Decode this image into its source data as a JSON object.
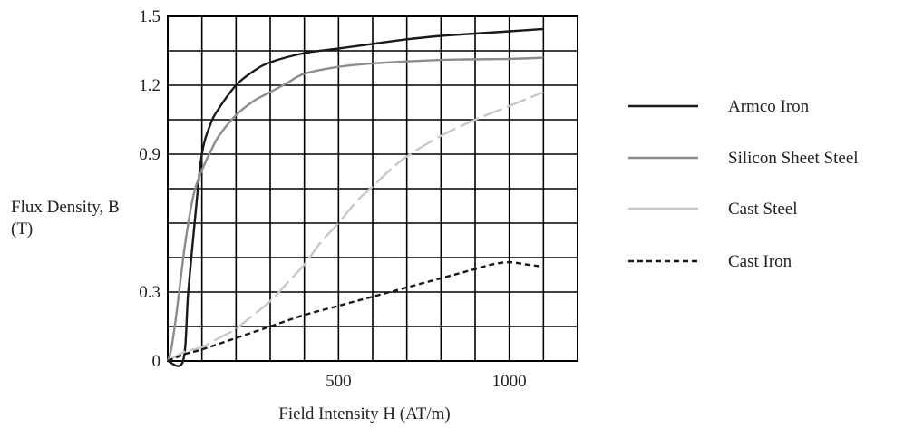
{
  "chart_data": {
    "type": "line",
    "title": "",
    "xlabel": "Field Intensity H (AT/m)",
    "ylabel_line1": "Flux Density, B",
    "ylabel_line2": "(T)",
    "xlim": [
      0,
      1200
    ],
    "ylim": [
      0,
      1.5
    ],
    "grid": true,
    "x_ticks": [
      {
        "value": 500,
        "label": "500"
      },
      {
        "value": 1000,
        "label": "1000"
      }
    ],
    "y_ticks": [
      {
        "value": 0,
        "label": "0"
      },
      {
        "value": 0.3,
        "label": "0.3"
      },
      {
        "value": 0.9,
        "label": "0.9"
      },
      {
        "value": 1.2,
        "label": "1.2"
      },
      {
        "value": 1.5,
        "label": "1.5"
      }
    ],
    "legend_position": "right",
    "series": [
      {
        "name": "Armco Iron",
        "color": "#1a1a1a",
        "dash": "",
        "x": [
          0,
          45,
          60,
          80,
          100,
          125,
          150,
          200,
          250,
          300,
          400,
          500,
          600,
          700,
          800,
          900,
          1000,
          1100
        ],
        "y": [
          0,
          0,
          0.3,
          0.62,
          0.9,
          1.03,
          1.1,
          1.2,
          1.26,
          1.3,
          1.34,
          1.36,
          1.38,
          1.4,
          1.415,
          1.425,
          1.435,
          1.445
        ]
      },
      {
        "name": "Silicon Sheet Steel",
        "color": "#8c8c8c",
        "dash": "",
        "x": [
          0,
          10,
          25,
          50,
          75,
          100,
          125,
          150,
          200,
          250,
          300,
          350,
          400,
          500,
          600,
          800,
          1000,
          1100
        ],
        "y": [
          0,
          0.05,
          0.2,
          0.5,
          0.72,
          0.83,
          0.91,
          0.98,
          1.07,
          1.13,
          1.17,
          1.21,
          1.25,
          1.28,
          1.295,
          1.31,
          1.315,
          1.32
        ]
      },
      {
        "name": "Cast Steel",
        "color": "#c8c8c8",
        "dash": "22 6",
        "x": [
          0,
          50,
          100,
          150,
          200,
          250,
          300,
          350,
          400,
          450,
          500,
          550,
          600,
          650,
          700,
          800,
          900,
          1000,
          1100
        ],
        "y": [
          0,
          0.04,
          0.06,
          0.1,
          0.14,
          0.2,
          0.26,
          0.34,
          0.42,
          0.52,
          0.6,
          0.69,
          0.76,
          0.83,
          0.89,
          0.98,
          1.05,
          1.11,
          1.17
        ]
      },
      {
        "name": "Cast Iron",
        "color": "#1a1a1a",
        "dash": "6 4",
        "x": [
          0,
          50,
          100,
          200,
          300,
          400,
          500,
          600,
          700,
          800,
          900,
          950,
          1000,
          1050,
          1100
        ],
        "y": [
          0,
          0.03,
          0.05,
          0.1,
          0.15,
          0.2,
          0.24,
          0.28,
          0.32,
          0.36,
          0.4,
          0.42,
          0.43,
          0.42,
          0.41
        ]
      }
    ]
  }
}
